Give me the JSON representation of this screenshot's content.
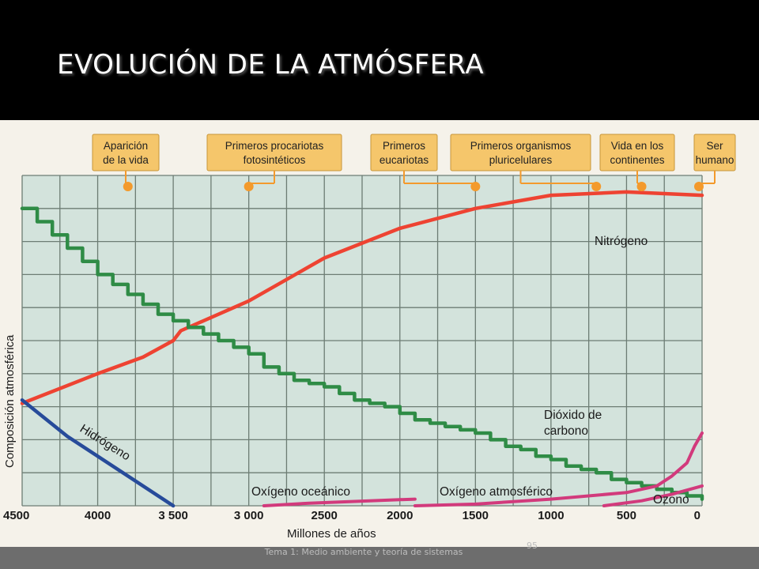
{
  "slide": {
    "title": "EVOLUCIÓN DE LA ATMÓSFERA",
    "footer": "Tema 1: Medio ambiente y teoría de sistemas",
    "page_number": "95"
  },
  "colors": {
    "background": "#000000",
    "grid_fill": "#d3e3dc",
    "nitrogen": "#ee4332",
    "co2": "#2f8c46",
    "hydrogen": "#274b9a",
    "oxygen": "#d23a7c",
    "ozone": "#d23a7c",
    "event_box": "#f5c66b",
    "event_dot": "#f39a2c"
  },
  "chart_data": {
    "type": "line",
    "title": "",
    "xlabel": "Millones de años",
    "ylabel": "Composición atmosférica",
    "xlim": [
      4500,
      0
    ],
    "ylim": [
      0,
      100
    ],
    "x_reversed": true,
    "grid": true,
    "x_ticks": [
      4500,
      4000,
      3500,
      3000,
      2500,
      2000,
      1500,
      1000,
      500,
      0
    ],
    "x_tick_labels": [
      "4500",
      "4000",
      "3 500",
      "3 000",
      "2500",
      "2000",
      "1500",
      "1000",
      "500",
      "0"
    ],
    "events": [
      {
        "label_lines": [
          "Aparición",
          "de la vida"
        ],
        "time": 3800
      },
      {
        "label_lines": [
          "Primeros procariotas",
          "fotosintéticos"
        ],
        "time": 3000
      },
      {
        "label_lines": [
          "Primeros",
          "eucariotas"
        ],
        "time": 1500
      },
      {
        "label_lines": [
          "Primeros organismos",
          "pluricelulares"
        ],
        "time": 700
      },
      {
        "label_lines": [
          "Vida en los",
          "continentes"
        ],
        "time": 400
      },
      {
        "label_lines": [
          "Ser",
          "humano"
        ],
        "time": 0
      }
    ],
    "series": [
      {
        "name": "Nitrógeno",
        "step": false,
        "x": [
          4500,
          4000,
          3700,
          3500,
          3450,
          3000,
          2500,
          2000,
          1500,
          1000,
          500,
          0
        ],
        "y": [
          31,
          40,
          45,
          50,
          53,
          62,
          75,
          84,
          90,
          94,
          95,
          94
        ]
      },
      {
        "name": "Dióxido de carbono",
        "step": true,
        "x": [
          4500,
          4400,
          4300,
          4200,
          4100,
          4000,
          3900,
          3800,
          3700,
          3600,
          3500,
          3400,
          3300,
          3200,
          3100,
          3000,
          2900,
          2800,
          2700,
          2600,
          2500,
          2400,
          2300,
          2200,
          2100,
          2000,
          1900,
          1800,
          1700,
          1600,
          1500,
          1400,
          1300,
          1200,
          1100,
          1000,
          900,
          800,
          700,
          600,
          500,
          400,
          300,
          200,
          100,
          0
        ],
        "y": [
          90,
          86,
          82,
          78,
          74,
          70,
          67,
          64,
          61,
          58,
          56,
          54,
          52,
          50,
          48,
          46,
          42,
          40,
          38,
          37,
          36,
          34,
          32,
          31,
          30,
          28,
          26,
          25,
          24,
          23,
          22,
          20,
          18,
          17,
          15,
          14,
          12,
          11,
          10,
          8,
          7,
          6,
          5,
          4,
          3,
          2
        ]
      },
      {
        "name": "Hidrógeno",
        "step": false,
        "x": [
          4500,
          4200,
          3800,
          3500
        ],
        "y": [
          32,
          21,
          9,
          0
        ]
      },
      {
        "name": "Oxígeno oceánico",
        "step": false,
        "x": [
          2900,
          2600,
          2200,
          1900
        ],
        "y": [
          0,
          0.8,
          1.5,
          2
        ]
      },
      {
        "name": "Oxígeno atmosférico",
        "step": false,
        "x": [
          1900,
          1500,
          1000,
          500,
          300,
          200,
          100,
          50,
          0
        ],
        "y": [
          0,
          0.5,
          2,
          4,
          6,
          9,
          13,
          18,
          22
        ]
      },
      {
        "name": "Ozono",
        "step": false,
        "x": [
          650,
          400,
          200,
          0
        ],
        "y": [
          0,
          1.5,
          3.5,
          6
        ]
      }
    ],
    "annotations": [
      "Nitrógeno",
      "Dióxido de carbono",
      "Hidrógeno",
      "Oxígeno oceánico",
      "Oxígeno atmosférico",
      "Ozono"
    ]
  }
}
